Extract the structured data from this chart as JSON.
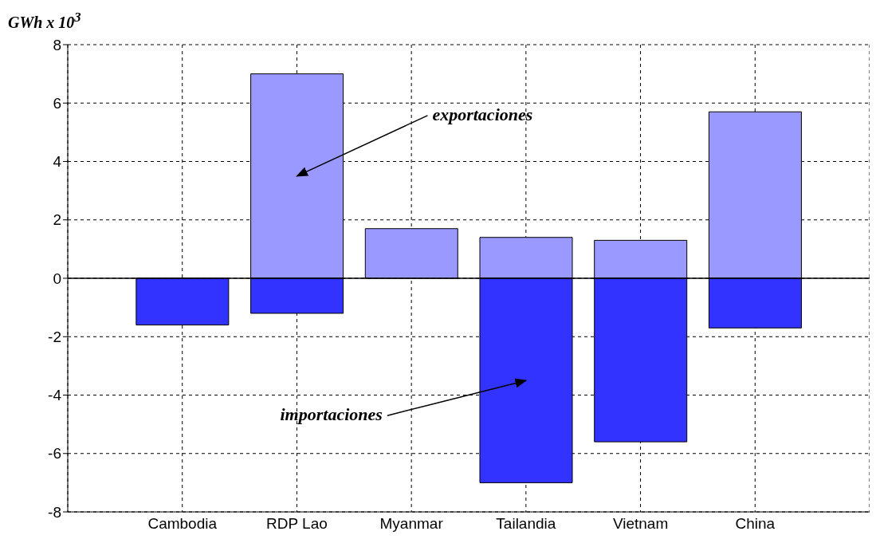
{
  "chart_data": {
    "type": "bar",
    "ylabel": "GWh x 10$^{3}$",
    "categories": [
      "Cambodia",
      "RDP Lao",
      "Myanmar",
      "Tailandia",
      "Vietnam",
      "China"
    ],
    "stacked": true,
    "series": [
      {
        "name": "exportaciones",
        "color": "#9999ff",
        "values": [
          null,
          7.0,
          1.7,
          1.4,
          1.3,
          5.7
        ]
      },
      {
        "name": "importaciones",
        "color": "#3333ff",
        "values": [
          -1.6,
          -1.2,
          null,
          -7.0,
          -5.6,
          -1.7
        ]
      }
    ],
    "ylim": [
      -8,
      8
    ],
    "yticks": [
      -8,
      -6,
      -4,
      -2,
      0,
      2,
      4,
      6,
      8
    ],
    "grid": true,
    "ref_lines": [
      {
        "axis": "y",
        "value": 0,
        "color": "#000000",
        "line_style": "solid"
      }
    ]
  }
}
